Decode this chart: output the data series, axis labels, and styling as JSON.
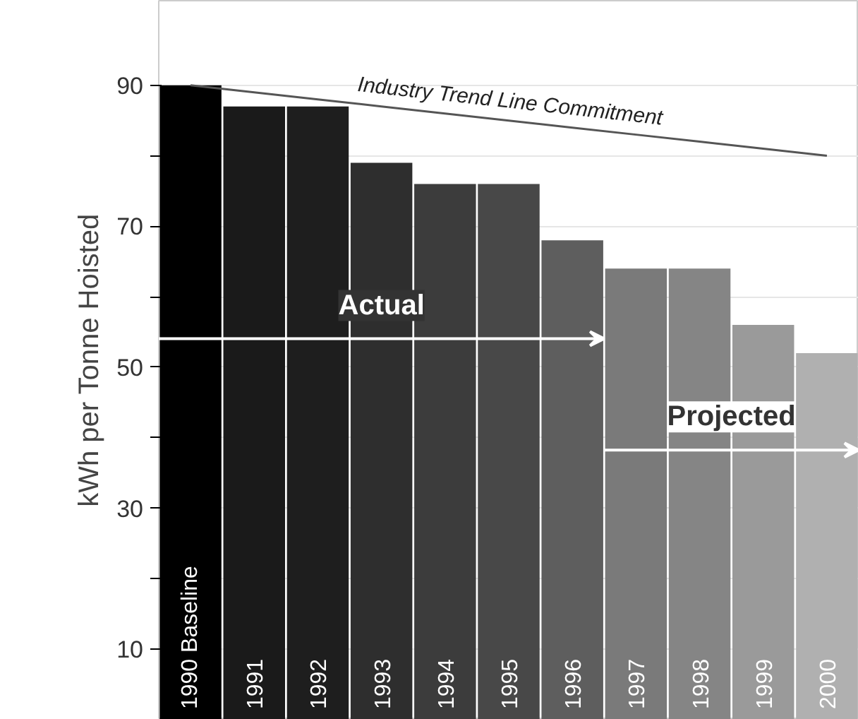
{
  "chart_data": {
    "type": "bar",
    "ylabel": "kWh per Tonne Hoisted",
    "categories": [
      "1990 Baseline",
      "1991",
      "1992",
      "1993",
      "1994",
      "1995",
      "1996",
      "1997",
      "1998",
      "1999",
      "2000"
    ],
    "series": [
      {
        "values": [
          90,
          87,
          87,
          79,
          76,
          76,
          68,
          64,
          64,
          56,
          52
        ],
        "colors": [
          "#000000",
          "#1a1a1a",
          "#1e1e1e",
          "#2e2e2e",
          "#3c3c3c",
          "#484848",
          "#5e5e5e",
          "#7a7a7a",
          "#858585",
          "#9a9a9a",
          "#b0b0b0"
        ]
      },
      {
        "type": "line",
        "values": [
          90,
          89,
          88,
          87,
          86,
          85,
          84,
          83,
          82,
          81,
          80
        ],
        "color": "#555555"
      }
    ],
    "annotations": [
      {
        "text": "Industry Trend Line Commitment",
        "x": "1995",
        "y": 86
      },
      "Actual",
      "Projected"
    ],
    "ylim": [
      0,
      102
    ],
    "yticks": [
      {
        "value": 10,
        "label": "10"
      },
      {
        "value": 20,
        "label": null
      },
      {
        "value": 30,
        "label": "30"
      },
      {
        "value": 40,
        "label": null
      },
      {
        "value": 50,
        "label": "50"
      },
      {
        "value": 60,
        "label": null
      },
      {
        "value": 70,
        "label": "70"
      },
      {
        "value": 80,
        "label": null
      },
      {
        "value": 90,
        "label": "90"
      }
    ],
    "grid": "y",
    "tick_labels": "y"
  }
}
